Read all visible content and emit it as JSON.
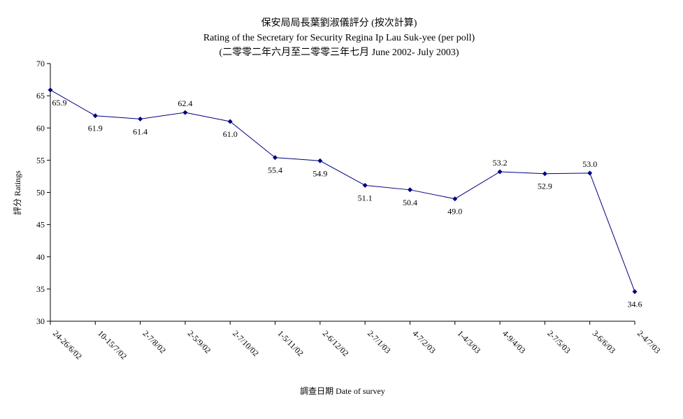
{
  "chart_data": {
    "type": "line",
    "title": "保安局局長葉劉淑儀評分 (按次計算)",
    "subtitle": "Rating of the Secretary for Security Regina Ip Lau Suk-yee  (per poll)",
    "subtitle2": "(二零零二年六月至二零零三年七月 June 2002- July 2003)",
    "xlabel": "調查日期 Date of survey",
    "ylabel": "評分 Ratings",
    "ylim": [
      30,
      70
    ],
    "yticks": [
      30,
      35,
      40,
      45,
      50,
      55,
      60,
      65,
      70
    ],
    "ytick_labels": [
      "30",
      "35",
      "40",
      "45",
      "50",
      "55",
      "60",
      "65",
      "70"
    ],
    "categories": [
      "24-26/6/02",
      "10-15/7/02",
      "2-7/8/02",
      "2-5/9/02",
      "2-7/10/02",
      "1-5/11/02",
      "2-6/12/02",
      "2-7/1/03",
      "4-7/2/03",
      "1-4/3/03",
      "4-9/4/03",
      "2-7/5/03",
      "3-6/6/03",
      "2-4/7/03"
    ],
    "series": [
      {
        "values": [
          65.9,
          61.9,
          61.4,
          62.4,
          61.0,
          55.4,
          54.9,
          51.1,
          50.4,
          49.0,
          53.2,
          52.9,
          53.0,
          34.6
        ],
        "labels": [
          "65.9",
          "61.9",
          "61.4",
          "62.4",
          "61.0",
          "55.4",
          "54.9",
          "51.1",
          "50.4",
          "49.0",
          "53.2",
          "52.9",
          "53.0",
          "34.6"
        ],
        "color": "#000080"
      }
    ],
    "grid": false,
    "legend": "none"
  }
}
